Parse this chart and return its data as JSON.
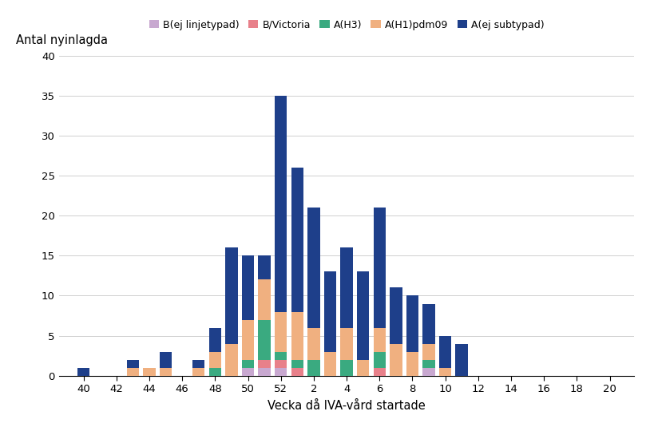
{
  "weeks": [
    40,
    43,
    44,
    45,
    47,
    48,
    49,
    50,
    51,
    52,
    1,
    2,
    3,
    4,
    5,
    6,
    7,
    8,
    9,
    10,
    11
  ],
  "B_ej_linjetypad": [
    0,
    0,
    0,
    0,
    0,
    0,
    0,
    1,
    1,
    1,
    0,
    0,
    0,
    0,
    0,
    0,
    0,
    0,
    1,
    0,
    0
  ],
  "B_Victoria": [
    0,
    0,
    0,
    0,
    0,
    0,
    0,
    0,
    1,
    1,
    1,
    0,
    0,
    0,
    0,
    1,
    0,
    0,
    0,
    0,
    0
  ],
  "A_H3": [
    0,
    0,
    0,
    0,
    0,
    1,
    0,
    1,
    5,
    1,
    1,
    2,
    0,
    2,
    0,
    2,
    0,
    0,
    1,
    0,
    0
  ],
  "A_H1pdm09": [
    0,
    1,
    1,
    1,
    1,
    2,
    4,
    5,
    5,
    5,
    6,
    4,
    3,
    4,
    2,
    3,
    4,
    3,
    2,
    1,
    0
  ],
  "A_ej_subtypad": [
    1,
    1,
    0,
    2,
    1,
    3,
    12,
    8,
    3,
    27,
    18,
    15,
    10,
    10,
    11,
    15,
    7,
    7,
    5,
    4,
    4
  ],
  "colors": {
    "B_ej_linjetypad": "#c8a8d0",
    "B_Victoria": "#e8808a",
    "A_H3": "#3aaa80",
    "A_H1pdm09": "#f0b080",
    "A_ej_subtypad": "#1e3f8a"
  },
  "legend_labels": [
    "B(ej linjetypad)",
    "B/Victoria",
    "A(H3)",
    "A(H1)pdm09",
    "A(ej subtypad)"
  ],
  "xlabel": "Vecka då IVA-vård startade",
  "ylabel": "Antal nyinlagda",
  "ylim": [
    0,
    40
  ],
  "yticks": [
    0,
    5,
    10,
    15,
    20,
    25,
    30,
    35,
    40
  ],
  "xtick_labels": [
    "40",
    "42",
    "44",
    "46",
    "48",
    "50",
    "52",
    "2",
    "4",
    "6",
    "8",
    "10",
    "12",
    "14",
    "16",
    "18",
    "20"
  ],
  "xtick_positions": [
    40,
    42,
    44,
    46,
    48,
    50,
    52,
    54,
    56,
    58,
    60,
    62,
    64,
    66,
    68,
    70,
    72
  ],
  "background_color": "#ffffff"
}
